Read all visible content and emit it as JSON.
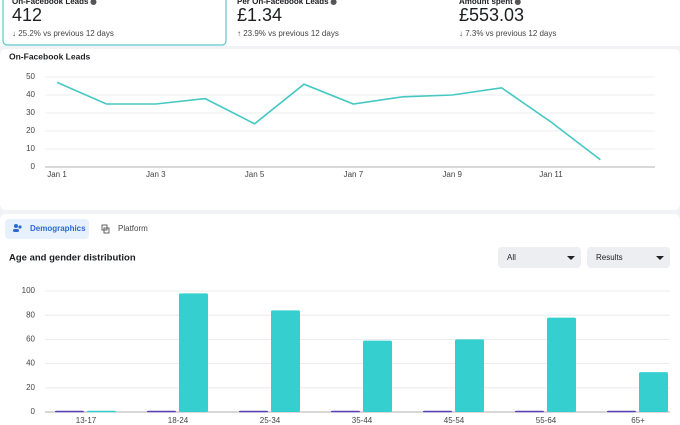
{
  "cards": [
    {
      "label": "On-Facebook Leads",
      "value": "412",
      "change": "↓ 25.2% vs previous 12 days"
    },
    {
      "label": "Per On-Facebook Leads",
      "value": "£1.34",
      "change": "↑ 23.9% vs previous 12 days"
    },
    {
      "label": "Amount spent",
      "value": "£553.03",
      "change": "↓ 7.3% vs previous 12 days"
    }
  ],
  "tabs": [
    "Demographics",
    "Platform"
  ],
  "filters": [
    "All",
    "Results"
  ],
  "chart_data": [
    {
      "type": "line",
      "title": "On-Facebook Leads",
      "categories": [
        "Jan 1",
        null,
        "Jan 3",
        null,
        "Jan 5",
        null,
        "Jan 7",
        null,
        "Jan 9",
        null,
        "Jan 11",
        null
      ],
      "values": [
        47,
        35,
        35,
        38,
        24,
        46,
        35,
        39,
        40,
        44,
        25,
        4
      ],
      "color": "#45c8c4",
      "ylim": [
        0,
        50
      ],
      "yticks": [
        0,
        10,
        20,
        30,
        40,
        50
      ],
      "grid": true
    },
    {
      "type": "bar",
      "title": "Age and gender distribution",
      "categories": [
        "13-17",
        "18-24",
        "25-34",
        "35-44",
        "45-54",
        "55-64",
        "65+"
      ],
      "series": [
        {
          "color": "#5b3fb8",
          "values": [
            1,
            1,
            1,
            1,
            1,
            1,
            1
          ]
        },
        {
          "color": "#36cfcf",
          "values": [
            1,
            98,
            84,
            59,
            60,
            78,
            33
          ]
        }
      ],
      "ylim": [
        0,
        100
      ],
      "yticks": [
        0,
        20,
        40,
        60,
        80,
        100
      ],
      "grid": true
    }
  ]
}
